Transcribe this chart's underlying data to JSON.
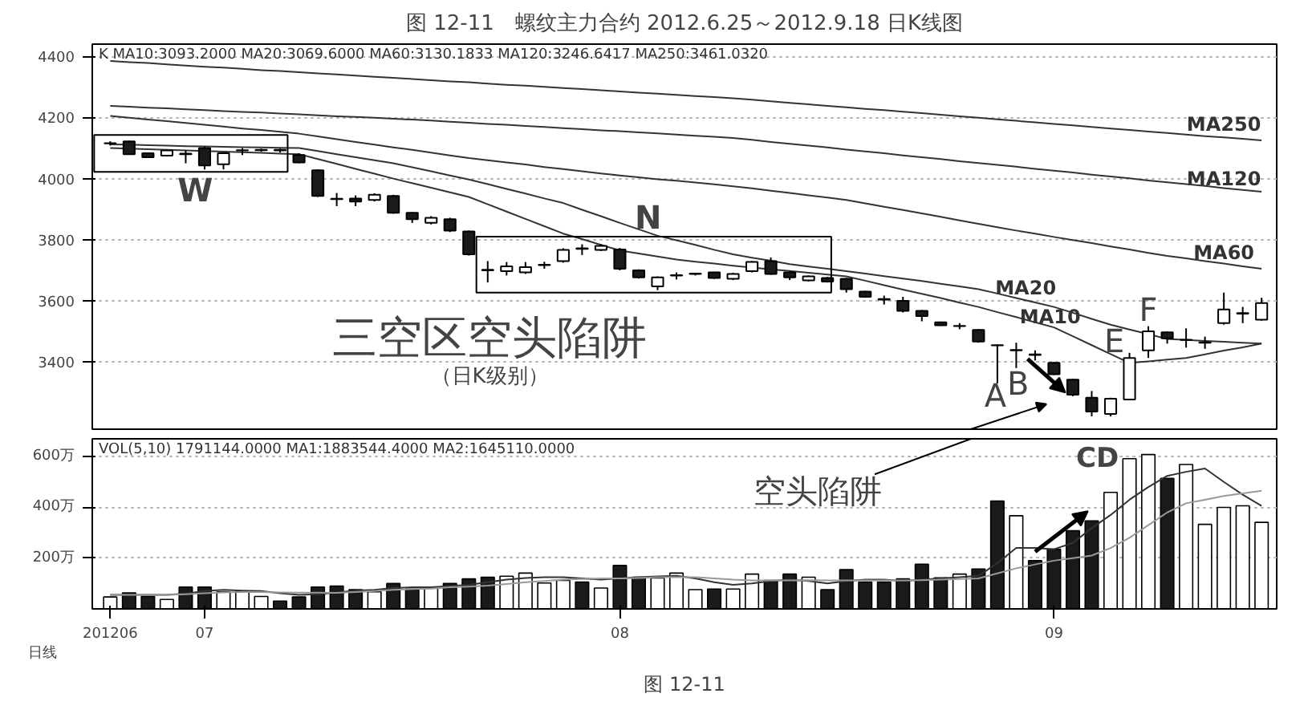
{
  "chart_data": [
    {
      "type": "candlestick",
      "title": "图 12-11　螺纹主力合约 2012.6.25～2012.9.18 日K线图",
      "categories": [
        null,
        null,
        null,
        null,
        null,
        null,
        null,
        null,
        null,
        null,
        null,
        null,
        null,
        null,
        null,
        null,
        null,
        null,
        null,
        null,
        null,
        null,
        null,
        null,
        null,
        null,
        null,
        null,
        null,
        null,
        null,
        null,
        null,
        null,
        null,
        null,
        null,
        null,
        null,
        null,
        null,
        null,
        null,
        null,
        null,
        null,
        null,
        null,
        null,
        null,
        null,
        null,
        null,
        null,
        null,
        null,
        null,
        null,
        null,
        null,
        null,
        null
      ],
      "tick_labels": "y",
      "grid": "y",
      "ylim": [
        3180,
        4440
      ],
      "yticks": [
        3400,
        3600,
        3800,
        4000,
        4200,
        4400
      ],
      "ohlc": [
        [
          4115,
          4122,
          4108,
          4116
        ],
        [
          4122,
          4124,
          4078,
          4080
        ],
        [
          4083,
          4085,
          4068,
          4070
        ],
        [
          4075,
          4094,
          4073,
          4092
        ],
        [
          4082,
          4093,
          4050,
          4080
        ],
        [
          4100,
          4105,
          4030,
          4043
        ],
        [
          4047,
          4085,
          4030,
          4083
        ],
        [
          4092,
          4100,
          4077,
          4093
        ],
        [
          4093,
          4098,
          4088,
          4094
        ],
        [
          4094,
          4098,
          4085,
          4092
        ],
        [
          4077,
          4083,
          4050,
          4053
        ],
        [
          4027,
          4030,
          3940,
          3943
        ],
        [
          3934,
          3953,
          3910,
          3933
        ],
        [
          3935,
          3945,
          3910,
          3925
        ],
        [
          3930,
          3952,
          3925,
          3947
        ],
        [
          3943,
          3947,
          3885,
          3888
        ],
        [
          3888,
          3890,
          3855,
          3867
        ],
        [
          3855,
          3877,
          3850,
          3872
        ],
        [
          3867,
          3872,
          3825,
          3830
        ],
        [
          3827,
          3830,
          3748,
          3752
        ],
        [
          3702,
          3730,
          3660,
          3700
        ],
        [
          3697,
          3727,
          3683,
          3713
        ],
        [
          3693,
          3727,
          3688,
          3710
        ],
        [
          3717,
          3728,
          3705,
          3718
        ],
        [
          3730,
          3772,
          3725,
          3767
        ],
        [
          3772,
          3785,
          3750,
          3770
        ],
        [
          3767,
          3785,
          3763,
          3780
        ],
        [
          3768,
          3773,
          3700,
          3705
        ],
        [
          3700,
          3703,
          3673,
          3677
        ],
        [
          3647,
          3680,
          3635,
          3677
        ],
        [
          3683,
          3693,
          3670,
          3684
        ],
        [
          3688,
          3692,
          3683,
          3689
        ],
        [
          3693,
          3695,
          3672,
          3675
        ],
        [
          3672,
          3692,
          3668,
          3688
        ],
        [
          3697,
          3730,
          3693,
          3727
        ],
        [
          3730,
          3742,
          3685,
          3688
        ],
        [
          3693,
          3697,
          3668,
          3677
        ],
        [
          3667,
          3683,
          3663,
          3680
        ],
        [
          3675,
          3678,
          3660,
          3663
        ],
        [
          3672,
          3675,
          3627,
          3638
        ],
        [
          3630,
          3633,
          3610,
          3613
        ],
        [
          3606,
          3617,
          3588,
          3604
        ],
        [
          3600,
          3613,
          3562,
          3567
        ],
        [
          3567,
          3570,
          3533,
          3550
        ],
        [
          3530,
          3532,
          3518,
          3520
        ],
        [
          3517,
          3527,
          3507,
          3518
        ],
        [
          3505,
          3508,
          3463,
          3467
        ],
        [
          3455,
          3458,
          3330,
          3454
        ],
        [
          3438,
          3463,
          3380,
          3439
        ],
        [
          3425,
          3438,
          3405,
          3423
        ],
        [
          3397,
          3400,
          3357,
          3360
        ],
        [
          3342,
          3345,
          3288,
          3293
        ],
        [
          3283,
          3305,
          3222,
          3238
        ],
        [
          3230,
          3283,
          3222,
          3280
        ],
        [
          3277,
          3430,
          3275,
          3413
        ],
        [
          3438,
          3517,
          3413,
          3500
        ],
        [
          3497,
          3500,
          3460,
          3477
        ],
        [
          3472,
          3510,
          3447,
          3473
        ],
        [
          3463,
          3483,
          3443,
          3464
        ],
        [
          3527,
          3627,
          3522,
          3572
        ],
        [
          3558,
          3580,
          3527,
          3560
        ],
        [
          3538,
          3610,
          3535,
          3593
        ]
      ],
      "series": [
        {
          "name": "MA250",
          "type": "line",
          "color": "#333333",
          "values": [
            4385,
            4381,
            4378,
            4374,
            4370,
            4366,
            4363,
            4359,
            4355,
            4352,
            4348,
            4344,
            4341,
            4337,
            4333,
            4330,
            4326,
            4322,
            4318,
            4315,
            4311,
            4307,
            4304,
            4300,
            4296,
            4293,
            4289,
            4285,
            4281,
            4278,
            4274,
            4270,
            4267,
            4263,
            4258,
            4253,
            4248,
            4243,
            4238,
            4233,
            4228,
            4224,
            4219,
            4214,
            4209,
            4204,
            4199,
            4194,
            4189,
            4184,
            4179,
            4174,
            4169,
            4164,
            4159,
            4154,
            4149,
            4144,
            4139,
            4135,
            4130,
            4125
          ]
        },
        {
          "name": "MA120",
          "type": "line",
          "color": "#333333",
          "values": [
            4238,
            4235,
            4232,
            4230,
            4227,
            4224,
            4221,
            4218,
            4216,
            4213,
            4210,
            4207,
            4204,
            4202,
            4199,
            4196,
            4193,
            4190,
            4186,
            4183,
            4179,
            4176,
            4172,
            4169,
            4165,
            4162,
            4158,
            4155,
            4151,
            4148,
            4144,
            4140,
            4137,
            4133,
            4127,
            4120,
            4114,
            4108,
            4102,
            4095,
            4089,
            4083,
            4076,
            4070,
            4064,
            4057,
            4051,
            4045,
            4039,
            4032,
            4026,
            4020,
            4013,
            4007,
            4001,
            3994,
            3988,
            3982,
            3976,
            3969,
            3963,
            3957
          ]
        },
        {
          "name": "MA60",
          "type": "line",
          "color": "#333333",
          "values": [
            4205,
            4199,
            4193,
            4188,
            4182,
            4176,
            4170,
            4164,
            4159,
            4153,
            4147,
            4138,
            4129,
            4120,
            4111,
            4102,
            4094,
            4085,
            4076,
            4067,
            4060,
            4053,
            4046,
            4038,
            4031,
            4024,
            4017,
            4010,
            4004,
            3998,
            3993,
            3987,
            3981,
            3975,
            3968,
            3960,
            3953,
            3945,
            3938,
            3930,
            3919,
            3908,
            3897,
            3886,
            3875,
            3863,
            3852,
            3841,
            3830,
            3820,
            3809,
            3799,
            3789,
            3778,
            3768,
            3757,
            3747,
            3739,
            3730,
            3722,
            3713,
            3705
          ]
        },
        {
          "name": "MA20",
          "type": "line",
          "color": "#333333",
          "values": [
            4112,
            4111,
            4109,
            4108,
            4106,
            4105,
            4104,
            4103,
            4102,
            4101,
            4100,
            4090,
            4080,
            4070,
            4060,
            4050,
            4037,
            4024,
            4010,
            3997,
            3982,
            3966,
            3951,
            3935,
            3920,
            3898,
            3877,
            3855,
            3834,
            3813,
            3798,
            3783,
            3767,
            3752,
            3741,
            3731,
            3720,
            3712,
            3705,
            3697,
            3689,
            3681,
            3673,
            3665,
            3656,
            3647,
            3638,
            3624,
            3609,
            3595,
            3580,
            3561,
            3541,
            3522,
            3506,
            3491,
            3475,
            3472,
            3469,
            3466,
            3463,
            3460
          ]
        },
        {
          "name": "MA10",
          "type": "line",
          "color": "#333333",
          "values": [
            4100,
            4098,
            4096,
            4094,
            4092,
            4090,
            4088,
            4086,
            4084,
            4082,
            4080,
            4064,
            4048,
            4032,
            4016,
            4000,
            3985,
            3970,
            3955,
            3940,
            3916,
            3892,
            3868,
            3844,
            3820,
            3802,
            3783,
            3765,
            3755,
            3745,
            3735,
            3728,
            3722,
            3715,
            3709,
            3703,
            3698,
            3692,
            3686,
            3680,
            3666,
            3651,
            3637,
            3623,
            3609,
            3594,
            3580,
            3563,
            3547,
            3530,
            3513,
            3484,
            3455,
            3426,
            3397,
            3402,
            3408,
            3413,
            3425,
            3437,
            3448,
            3460
          ]
        }
      ],
      "annotations": [
        "K  MA10:3093.2000  MA20:3069.6000  MA60:3130.1833  MA120:3246.6417  MA250:3461.0320",
        "W",
        "N",
        "三空区空头陷阱",
        "（日K级别）",
        "A",
        "B",
        "E",
        "F"
      ]
    },
    {
      "type": "bar",
      "categories": [
        "201206",
        null,
        null,
        null,
        null,
        "07",
        null,
        null,
        null,
        null,
        null,
        null,
        null,
        null,
        null,
        null,
        null,
        null,
        null,
        null,
        null,
        null,
        null,
        null,
        null,
        null,
        null,
        "08",
        null,
        null,
        null,
        null,
        null,
        null,
        null,
        null,
        null,
        null,
        null,
        null,
        null,
        null,
        null,
        null,
        null,
        null,
        null,
        null,
        null,
        null,
        "09",
        null,
        null,
        null,
        null,
        null,
        null,
        null,
        null,
        null,
        null,
        null
      ],
      "grid": "y",
      "ylim": [
        0,
        670
      ],
      "yticks": [
        {
          "value": 200,
          "label": "200万"
        },
        {
          "value": 400,
          "label": "400万"
        },
        {
          "value": 600,
          "label": "600万"
        }
      ],
      "values": [
        47,
        63,
        49,
        37,
        86,
        86,
        67,
        69,
        49,
        31,
        47,
        86,
        90,
        76,
        67,
        100,
        78,
        82,
        100,
        118,
        125,
        129,
        141,
        102,
        112,
        106,
        82,
        171,
        125,
        122,
        141,
        76,
        78,
        78,
        137,
        112,
        137,
        125,
        76,
        155,
        106,
        106,
        118,
        176,
        122,
        137,
        157,
        425,
        367,
        190,
        235,
        308,
        347,
        459,
        592,
        608,
        514,
        569,
        333,
        400,
        406,
        341
      ],
      "colors": [
        "#ffffff",
        "#1a1a1a",
        "#1a1a1a",
        "#ffffff",
        "#1a1a1a",
        "#1a1a1a",
        "#ffffff",
        "#ffffff",
        "#ffffff",
        "#1a1a1a",
        "#1a1a1a",
        "#1a1a1a",
        "#1a1a1a",
        "#1a1a1a",
        "#ffffff",
        "#1a1a1a",
        "#1a1a1a",
        "#ffffff",
        "#1a1a1a",
        "#1a1a1a",
        "#1a1a1a",
        "#ffffff",
        "#ffffff",
        "#ffffff",
        "#ffffff",
        "#1a1a1a",
        "#ffffff",
        "#1a1a1a",
        "#1a1a1a",
        "#ffffff",
        "#ffffff",
        "#ffffff",
        "#1a1a1a",
        "#ffffff",
        "#ffffff",
        "#1a1a1a",
        "#1a1a1a",
        "#ffffff",
        "#1a1a1a",
        "#1a1a1a",
        "#1a1a1a",
        "#1a1a1a",
        "#1a1a1a",
        "#1a1a1a",
        "#1a1a1a",
        "#ffffff",
        "#1a1a1a",
        "#1a1a1a",
        "#ffffff",
        "#1a1a1a",
        "#1a1a1a",
        "#1a1a1a",
        "#1a1a1a",
        "#ffffff",
        "#ffffff",
        "#ffffff",
        "#1a1a1a",
        "#ffffff",
        "#ffffff",
        "#ffffff",
        "#ffffff",
        "#ffffff"
      ],
      "series": [
        {
          "type": "line",
          "color": "#333333",
          "values": [
            55,
            55,
            55,
            55,
            60,
            70,
            75,
            72,
            70,
            62,
            55,
            58,
            65,
            72,
            75,
            82,
            85,
            85,
            90,
            95,
            105,
            115,
            122,
            125,
            125,
            120,
            115,
            120,
            125,
            128,
            130,
            120,
            105,
            95,
            100,
            110,
            115,
            110,
            100,
            110,
            115,
            115,
            110,
            115,
            120,
            125,
            130,
            180,
            240,
            240,
            235,
            260,
            318,
            370,
            430,
            480,
            524,
            540,
            553,
            500,
            450,
            406
          ]
        },
        {
          "type": "line",
          "color": "#999999",
          "values": [
            55,
            55,
            55,
            55,
            58,
            62,
            65,
            66,
            66,
            65,
            64,
            64,
            63,
            66,
            70,
            75,
            78,
            80,
            85,
            88,
            92,
            98,
            105,
            110,
            115,
            118,
            120,
            120,
            122,
            125,
            125,
            125,
            120,
            115,
            112,
            112,
            112,
            113,
            112,
            112,
            112,
            112,
            112,
            113,
            115,
            118,
            120,
            140,
            160,
            175,
            190,
            200,
            210,
            240,
            280,
            330,
            380,
            416,
            430,
            445,
            455,
            465
          ]
        }
      ],
      "annotations": [
        "VOL(5,10) 1791144.0000 MA1:1883544.4000 MA2:1645110.0000",
        "空头陷阱",
        "CD",
        "日线",
        "图 12-11"
      ]
    }
  ]
}
